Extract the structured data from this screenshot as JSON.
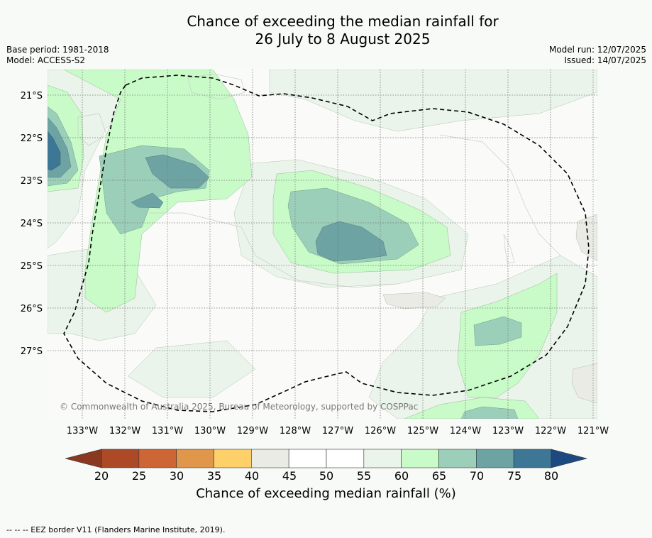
{
  "title_line1": "Chance of exceeding the median rainfall for",
  "title_line2": "26 July to 8 August 2025",
  "base_period": "Base period: 1981-2018",
  "model": "Model: ACCESS-S2",
  "model_run": "Model run: 12/07/2025",
  "issued": "Issued: 14/07/2025",
  "copyright": "© Commonwealth of Australia 2025, Bureau of Meteorology, supported by COSPPac",
  "lat_labels": [
    "21°S",
    "22°S",
    "23°S",
    "24°S",
    "25°S",
    "26°S",
    "27°S"
  ],
  "lon_labels": [
    "133°W",
    "132°W",
    "131°W",
    "130°W",
    "129°W",
    "128°W",
    "127°W",
    "126°W",
    "125°W",
    "124°W",
    "123°W",
    "122°W",
    "121°W"
  ],
  "colorbar": {
    "label": "Chance of exceeding median rainfall (%)",
    "ticks": [
      "20",
      "25",
      "30",
      "35",
      "40",
      "45",
      "50",
      "55",
      "60",
      "65",
      "70",
      "75",
      "80"
    ],
    "colors": [
      "#ac4a27",
      "#cd6534",
      "#e1974b",
      "#fdd06a",
      "#ebebe6",
      "#ffffff",
      "#ffffff",
      "#eaf4ea",
      "#c8fbc8",
      "#9ccfb9",
      "#6ea3a4",
      "#3e7796"
    ],
    "under_color": "#8a3820",
    "over_color": "#1c4a80"
  },
  "footer": "--  --  -- EEZ border V11 (Flanders Marine Institute, 2019).",
  "chart_data": {
    "type": "heatmap",
    "xlim": [
      -133.8,
      -120.9
    ],
    "ylim": [
      -28.8,
      -20.4
    ],
    "levels": [
      20,
      25,
      30,
      35,
      40,
      45,
      50,
      55,
      60,
      65,
      70,
      75,
      80
    ],
    "regions": [
      {
        "lon": -133.6,
        "lat": -22.4,
        "value": 73
      },
      {
        "lon": -131.2,
        "lat": -22.9,
        "value": 69
      },
      {
        "lon": -131.8,
        "lat": -23.5,
        "value": 70
      },
      {
        "lon": -126.4,
        "lat": -24.4,
        "value": 72
      },
      {
        "lon": -123.6,
        "lat": -26.5,
        "value": 68
      },
      {
        "lon": -124.3,
        "lat": -28.3,
        "value": 66
      },
      {
        "lon": -126.0,
        "lat": -25.8,
        "value": 44
      },
      {
        "lon": -121.1,
        "lat": -27.2,
        "value": 44
      },
      {
        "lon": -121.1,
        "lat": -24.3,
        "value": 44
      }
    ]
  }
}
